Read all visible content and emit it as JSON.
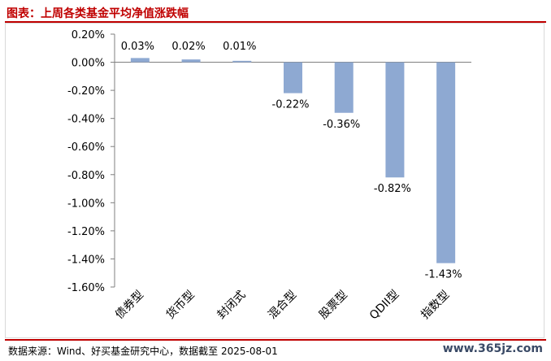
{
  "title": "图表：上周各类基金平均净值涨跌幅",
  "source": "数据来源：Wind、好买基金研究中心，数据截至 2025-08-01",
  "watermark": "www.365jz.com",
  "colors": {
    "bar": "#8ea9d2",
    "accent": "#c00000",
    "axis": "#7f7f7f"
  },
  "chart_data": {
    "type": "bar",
    "categories": [
      "债券型",
      "货币型",
      "封闭式",
      "混合型",
      "股票型",
      "QDII型",
      "指数型"
    ],
    "values": [
      0.03,
      0.02,
      0.01,
      -0.22,
      -0.36,
      -0.82,
      -1.43
    ],
    "value_labels": [
      "0.03%",
      "0.02%",
      "0.01%",
      "-0.22%",
      "-0.36%",
      "-0.82%",
      "-1.43%"
    ],
    "yticks": [
      0.2,
      0.0,
      -0.2,
      -0.4,
      -0.6,
      -0.8,
      -1.0,
      -1.2,
      -1.4,
      -1.6
    ],
    "ytick_labels": [
      "0.20%",
      "0.00%",
      "-0.20%",
      "-0.40%",
      "-0.60%",
      "-0.80%",
      "-1.00%",
      "-1.20%",
      "-1.40%",
      "-1.60%"
    ],
    "ylim": [
      -1.6,
      0.2
    ],
    "grid": false,
    "legend": "none"
  }
}
